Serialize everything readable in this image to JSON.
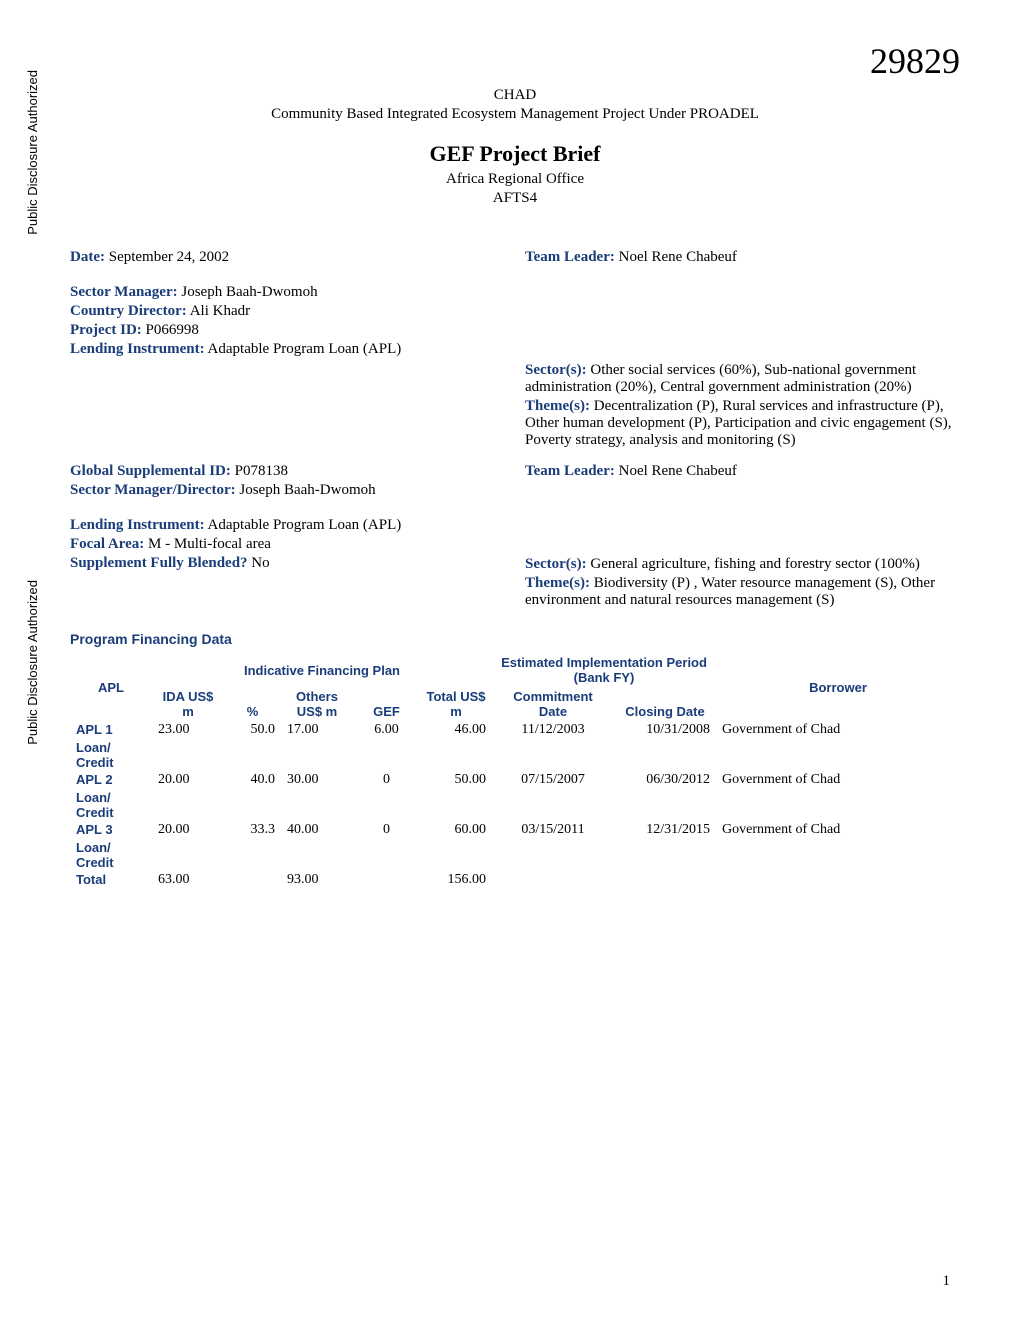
{
  "doc_number": "29829",
  "sidebar_label": "Public Disclosure Authorized",
  "header": {
    "country": "CHAD",
    "subtitle": "Community Based Integrated Ecosystem Management Project Under PROADEL",
    "title": "GEF Project Brief",
    "office": "Africa Regional Office",
    "unit": "AFTS4"
  },
  "meta1": {
    "date_label": "Date:",
    "date_value": "September 24, 2002",
    "team_leader_label": "Team Leader:",
    "team_leader_value": "Noel Rene Chabeuf",
    "sector_manager_label": "Sector Manager:",
    "sector_manager_value": "Joseph Baah-Dwomoh",
    "country_director_label": "Country Director:",
    "country_director_value": "Ali Khadr",
    "project_id_label": "Project ID:",
    "project_id_value": "P066998",
    "lending_instrument_label": "Lending Instrument:",
    "lending_instrument_value": "Adaptable Program Loan (APL)",
    "sectors_label": "Sector(s):",
    "sectors_value": "Other social services (60%),  Sub-national government administration (20%),  Central government administration (20%)",
    "themes_label": "Theme(s):",
    "themes_value": "Decentralization (P),  Rural services and infrastructure (P),  Other human development (P),  Participation and civic engagement (S),  Poverty strategy, analysis and monitoring (S)"
  },
  "meta2": {
    "global_id_label": "Global Supplemental ID:",
    "global_id_value": "P078138",
    "team_leader_label": "Team Leader:",
    "team_leader_value": "Noel Rene Chabeuf",
    "sector_manager_director_label": "Sector Manager/Director:",
    "sector_manager_director_value": "Joseph Baah-Dwomoh",
    "lending_instrument_label": "Lending Instrument:",
    "lending_instrument_value": "Adaptable Program Loan (APL)",
    "focal_area_label": "Focal Area:",
    "focal_area_value": "M - Multi-focal area",
    "supplement_blended_label": "Supplement Fully Blended?",
    "supplement_blended_value": "No",
    "sectors_label": "Sector(s):",
    "sectors_value": "General agriculture, fishing and forestry sector (100%)",
    "themes_label": "Theme(s):",
    "themes_value": "Biodiversity (P) ,  Water resource management (S),  Other environment and natural resources management (S)"
  },
  "financing": {
    "title": "Program Financing Data",
    "group_headers": {
      "apl": "APL",
      "indicative": "Indicative Financing Plan",
      "estimated": "Estimated Implementation Period (Bank FY)",
      "borrower": "Borrower"
    },
    "col_headers": {
      "ida": "IDA US$ m",
      "pct": "%",
      "others": "Others US$ m",
      "gef": "GEF",
      "total": "Total US$ m",
      "commit": "Commitment Date",
      "closing": "Closing Date"
    },
    "rows": [
      {
        "label": "APL 1",
        "sublabel": "Loan/ Credit",
        "ida": "23.00",
        "pct": "50.0",
        "others": "17.00",
        "gef": "6.00",
        "total": "46.00",
        "commit": "11/12/2003",
        "closing": "10/31/2008",
        "borrower": "Government of Chad"
      },
      {
        "label": "APL 2",
        "sublabel": "Loan/ Credit",
        "ida": "20.00",
        "pct": "40.0",
        "others": "30.00",
        "gef": "0",
        "total": "50.00",
        "commit": "07/15/2007",
        "closing": "06/30/2012",
        "borrower": "Government of Chad"
      },
      {
        "label": "APL 3",
        "sublabel": "Loan/ Credit",
        "ida": "20.00",
        "pct": "33.3",
        "others": "40.00",
        "gef": "0",
        "total": "60.00",
        "commit": "03/15/2011",
        "closing": "12/31/2015",
        "borrower": "Government of Chad"
      }
    ],
    "total_row": {
      "label": "Total",
      "ida": "63.00",
      "others": "93.00",
      "total": "156.00"
    }
  },
  "page_number": "1",
  "colors": {
    "label_color": "#1a3d7a",
    "text_color": "#000000",
    "background": "#ffffff"
  }
}
